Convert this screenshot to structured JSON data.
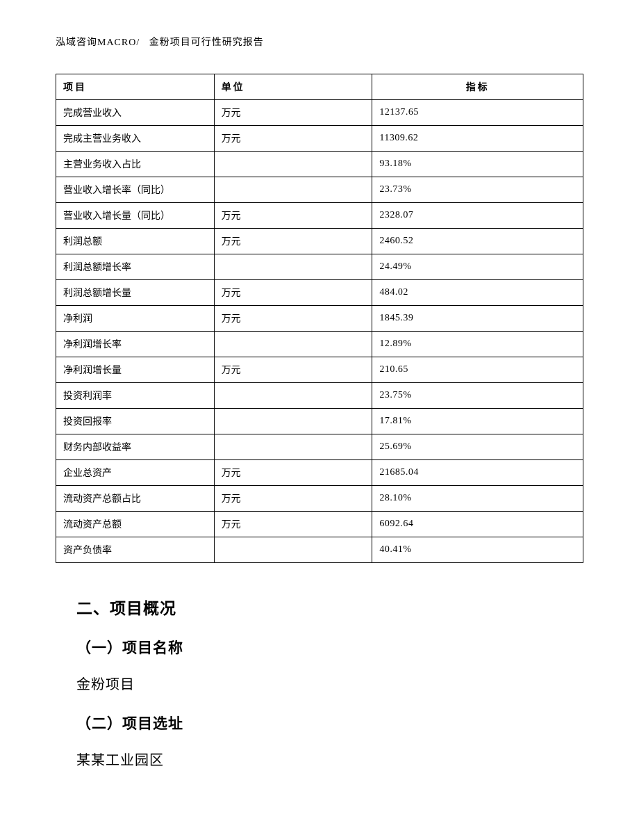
{
  "header": {
    "company": "泓域咨询MACRO/",
    "title": "金粉项目可行性研究报告"
  },
  "table": {
    "columns": [
      "项目",
      "单位",
      "指标"
    ],
    "column_widths": [
      "30%",
      "30%",
      "40%"
    ],
    "header_align": [
      "left",
      "left",
      "center"
    ],
    "border_color": "#000000",
    "font_size": 14,
    "rows": [
      {
        "item": "完成营业收入",
        "unit": "万元",
        "value": "12137.65"
      },
      {
        "item": "完成主营业务收入",
        "unit": "万元",
        "value": "11309.62"
      },
      {
        "item": "主营业务收入占比",
        "unit": "",
        "value": "93.18%"
      },
      {
        "item": "营业收入增长率（同比）",
        "unit": "",
        "value": "23.73%"
      },
      {
        "item": "营业收入增长量（同比）",
        "unit": "万元",
        "value": "2328.07"
      },
      {
        "item": "利润总额",
        "unit": "万元",
        "value": "2460.52"
      },
      {
        "item": "利润总额增长率",
        "unit": "",
        "value": "24.49%"
      },
      {
        "item": "利润总额增长量",
        "unit": "万元",
        "value": "484.02"
      },
      {
        "item": "净利润",
        "unit": "万元",
        "value": "1845.39"
      },
      {
        "item": "净利润增长率",
        "unit": "",
        "value": "12.89%"
      },
      {
        "item": "净利润增长量",
        "unit": "万元",
        "value": "210.65"
      },
      {
        "item": "投资利润率",
        "unit": "",
        "value": "23.75%"
      },
      {
        "item": "投资回报率",
        "unit": "",
        "value": "17.81%"
      },
      {
        "item": "财务内部收益率",
        "unit": "",
        "value": "25.69%"
      },
      {
        "item": "企业总资产",
        "unit": "万元",
        "value": "21685.04"
      },
      {
        "item": "流动资产总额占比",
        "unit": "万元",
        "value": "28.10%"
      },
      {
        "item": "流动资产总额",
        "unit": "万元",
        "value": "6092.64"
      },
      {
        "item": "资产负债率",
        "unit": "",
        "value": "40.41%"
      }
    ]
  },
  "sections": {
    "heading2": "二、项目概况",
    "sub1_heading": "（一）项目名称",
    "sub1_body": "金粉项目",
    "sub2_heading": "（二）项目选址",
    "sub2_body": "某某工业园区"
  },
  "colors": {
    "background": "#ffffff",
    "text": "#000000",
    "border": "#000000"
  }
}
